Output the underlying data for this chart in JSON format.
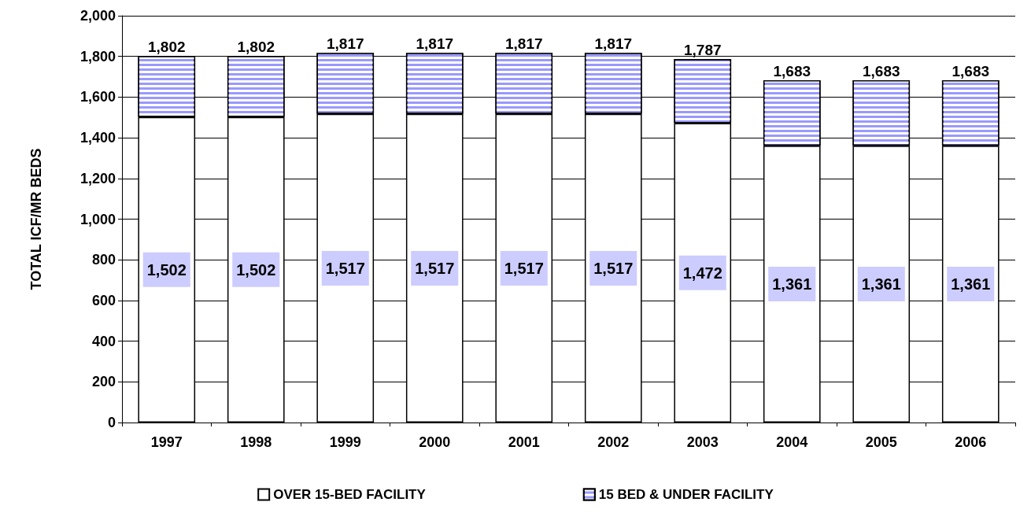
{
  "chart_data": {
    "type": "bar",
    "stacked": true,
    "ylabel": "TOTAL ICF/MR BEDS",
    "categories": [
      "1997",
      "1998",
      "1999",
      "2000",
      "2001",
      "2002",
      "2003",
      "2004",
      "2005",
      "2006"
    ],
    "series": [
      {
        "name": "OVER 15-BED FACILITY",
        "color": "#ffffff",
        "values": [
          1502,
          1502,
          1517,
          1517,
          1517,
          1517,
          1472,
          1361,
          1361,
          1361
        ],
        "value_labels": [
          "1,502",
          "1,502",
          "1,517",
          "1,517",
          "1,517",
          "1,517",
          "1,472",
          "1,361",
          "1,361",
          "1,361"
        ]
      },
      {
        "name": "15 BED & UNDER FACILITY",
        "color": "#9999ff",
        "values": [
          300,
          300,
          300,
          300,
          300,
          300,
          315,
          322,
          322,
          322
        ]
      }
    ],
    "totals": [
      "1,802",
      "1,802",
      "1,817",
      "1,817",
      "1,817",
      "1,817",
      "1,787",
      "1,683",
      "1,683",
      "1,683"
    ],
    "ylim": [
      0,
      2000
    ],
    "yticks": [
      0,
      200,
      400,
      600,
      800,
      {
        "value": 1000,
        "label": "1,000"
      },
      {
        "value": 1200,
        "label": "1,200"
      },
      {
        "value": 1400,
        "label": "1,400"
      },
      {
        "value": 1600,
        "label": "1,600"
      },
      {
        "value": 1800,
        "label": "1,800"
      },
      {
        "value": 2000,
        "label": "2,000"
      }
    ],
    "grid": "y",
    "legend": "bottom"
  }
}
